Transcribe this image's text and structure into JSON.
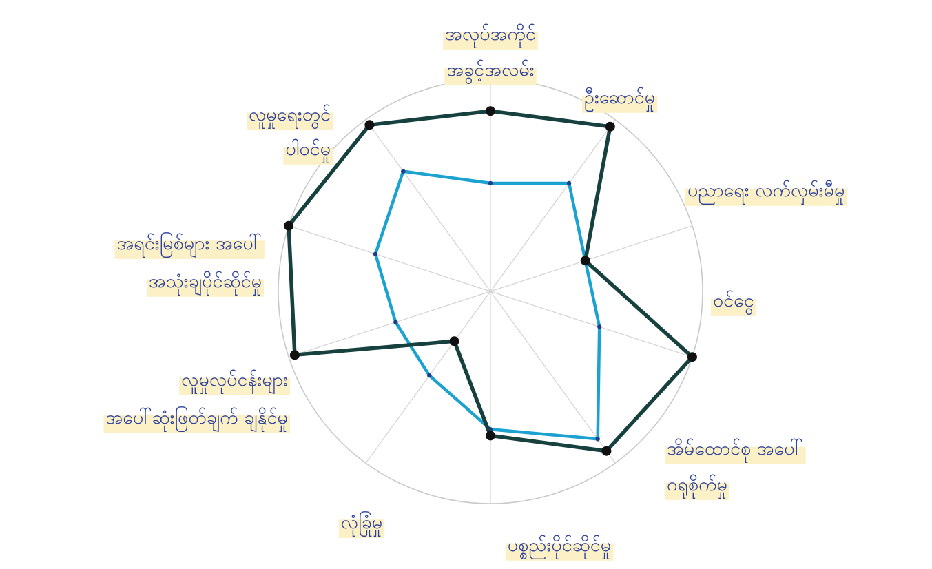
{
  "chart_data": {
    "type": "radar",
    "title": "",
    "axes": [
      {
        "label_lines": [
          "အလုပ်အကိုင်",
          "အခွင့်အလမ်း"
        ]
      },
      {
        "label_lines": [
          "ဦးဆောင်မှု"
        ]
      },
      {
        "label_lines": [
          "ပညာရေး လက်လှမ်းမီမှု"
        ]
      },
      {
        "label_lines": [
          "ဝင်ငွေ"
        ]
      },
      {
        "label_lines": [
          "အိမ်ထောင်စု အပေါ်",
          "ဂရုစိုက်မှု"
        ]
      },
      {
        "label_lines": [
          "ပစ္စည်းပိုင်ဆိုင်မှု"
        ]
      },
      {
        "label_lines": [
          "လုံခြုံမှု"
        ]
      },
      {
        "label_lines": [
          "လူမှုလုပ်ငန်းများ",
          "အပေါ်ဆုံးဖြတ်ချက် ချနိုင်မှု"
        ]
      },
      {
        "label_lines": [
          "အရင်းမြစ်များ အပေါ်",
          "အသုံးချပိုင်ဆိုင်မှု"
        ]
      },
      {
        "label_lines": [
          "လူမှုရေးတွင်",
          "ပါဝင်မှု"
        ]
      }
    ],
    "scale": [
      0,
      1
    ],
    "grid": "outer circle with radial spokes",
    "series": [
      {
        "color": "#16413f",
        "values": [
          0.85,
          0.96,
          0.47,
          1.0,
          0.93,
          0.68,
          0.29,
          0.97,
          1.0,
          0.97
        ],
        "markers": true
      },
      {
        "color": "#1ba2d1",
        "values": [
          0.51,
          0.63,
          0.47,
          0.54,
          0.86,
          0.65,
          0.49,
          0.47,
          0.57,
          0.7
        ],
        "markers": true
      }
    ]
  }
}
